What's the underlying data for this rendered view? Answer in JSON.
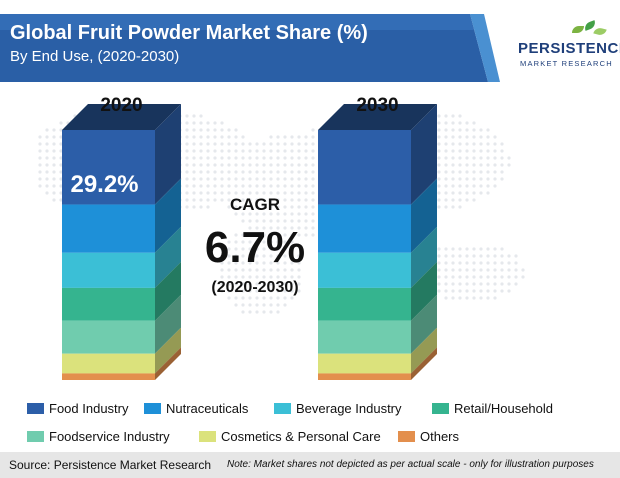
{
  "header": {
    "title": "Global Fruit Powder Market Share (%)",
    "subtitle": "By End Use, (2020-2030)"
  },
  "logo": {
    "name": "PERSISTENCE",
    "tagline": "MARKET RESEARCH"
  },
  "colors": {
    "header_blue": "#2a5fa6",
    "header_accent": "#4a90d1",
    "series": [
      "#2c5ea8",
      "#1e90d8",
      "#3bbfd6",
      "#35b48f",
      "#70ccae",
      "#dbe27c",
      "#e38f4d"
    ]
  },
  "chart_data": {
    "type": "bar",
    "stacked": true,
    "categories": [
      "2020",
      "2030"
    ],
    "series": [
      {
        "name": "Food Industry",
        "values": [
          29.2,
          null
        ]
      },
      {
        "name": "Nutraceuticals",
        "values": [
          null,
          null
        ]
      },
      {
        "name": "Beverage Industry",
        "values": [
          null,
          null
        ]
      },
      {
        "name": "Retail/Household",
        "values": [
          null,
          null
        ]
      },
      {
        "name": "Foodservice Industry",
        "values": [
          null,
          null
        ]
      },
      {
        "name": "Cosmetics & Personal Care",
        "values": [
          null,
          null
        ]
      },
      {
        "name": "Others",
        "values": [
          null,
          null
        ]
      }
    ],
    "data_labels": [
      {
        "category": "2020",
        "series": "Food Industry",
        "text": "29.2%"
      }
    ],
    "annotation": {
      "label": "CAGR",
      "value": "6.7%",
      "period": "(2020-2030)"
    },
    "legend_position": "bottom",
    "grid": false
  },
  "footer": {
    "source": "Source: Persistence Market Research",
    "note": "Note: Market shares not depicted as per actual scale - only for illustration purposes"
  }
}
